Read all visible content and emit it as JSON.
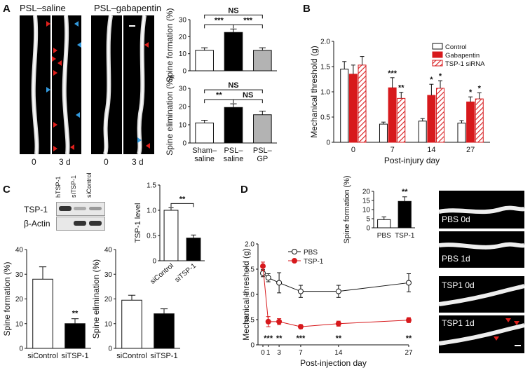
{
  "panels": {
    "A": "A",
    "B": "B",
    "C": "C",
    "D": "D"
  },
  "panel_a": {
    "micro_titles": [
      "PSL–saline",
      "PSL–gabapentin"
    ],
    "micro_times": [
      "0",
      "3 d",
      "0",
      "3 d"
    ]
  },
  "panel_c_blot": {
    "lanes": [
      "hTSP-1",
      "siTSP-1",
      "siControl"
    ],
    "rows": [
      "TSP-1",
      "β-Actin"
    ]
  },
  "panel_d_micro": [
    "PBS 0d",
    "PBS 1d",
    "TSP1 0d",
    "TSP1 1d"
  ],
  "colors": {
    "control": "#ffffff",
    "gabapentin": "#d7191c",
    "tsp1": "#d7191c",
    "black": "#000000",
    "gray": "#b3b3b3",
    "arrow_red": "#e0201c",
    "arrow_blue": "#3399dd"
  },
  "chart_data": [
    {
      "id": "A-formation",
      "type": "bar",
      "categories": [
        "Sham–saline",
        "PSL–saline",
        "PSL–GP"
      ],
      "values": [
        12,
        22.5,
        12
      ],
      "errors": [
        1.5,
        2,
        1.5
      ],
      "colors": [
        "#ffffff",
        "#000000",
        "#b3b3b3"
      ],
      "ylabel": "Spine formation (%)",
      "ylim": [
        0,
        30
      ],
      "yticks": [
        0,
        10,
        20,
        30
      ],
      "significance": [
        {
          "from": 0,
          "to": 1,
          "label": "***",
          "level": 1
        },
        {
          "from": 1,
          "to": 2,
          "label": "***",
          "level": 1
        },
        {
          "from": 0,
          "to": 2,
          "label": "NS",
          "level": 2
        }
      ]
    },
    {
      "id": "A-elimination",
      "type": "bar",
      "categories": [
        "Sham–saline",
        "PSL–saline",
        "PSL–GP"
      ],
      "category_lines": [
        [
          "Sham–",
          "saline"
        ],
        [
          "PSL–",
          "saline"
        ],
        [
          "PSL–",
          "GP"
        ]
      ],
      "values": [
        11,
        19.5,
        15.5
      ],
      "errors": [
        1.5,
        2,
        2
      ],
      "colors": [
        "#ffffff",
        "#000000",
        "#b3b3b3"
      ],
      "ylabel": "Spine elimination (%)",
      "ylim": [
        0,
        30
      ],
      "yticks": [
        0,
        10,
        20,
        30
      ],
      "significance": [
        {
          "from": 0,
          "to": 1,
          "label": "**",
          "level": 1
        },
        {
          "from": 1,
          "to": 2,
          "label": "NS",
          "level": 1
        },
        {
          "from": 0,
          "to": 2,
          "label": "NS",
          "level": 2
        }
      ]
    },
    {
      "id": "B",
      "type": "bar",
      "categories": [
        "0",
        "7",
        "14",
        "27"
      ],
      "series": [
        {
          "name": "Control",
          "values": [
            1.45,
            0.36,
            0.42,
            0.38
          ],
          "errors": [
            0.15,
            0.04,
            0.05,
            0.05
          ],
          "style": "white"
        },
        {
          "name": "Gabapentin",
          "values": [
            1.35,
            1.08,
            0.93,
            0.8
          ],
          "errors": [
            0.18,
            0.2,
            0.22,
            0.1
          ],
          "style": "red"
        },
        {
          "name": "TSP-1 siRNA",
          "values": [
            1.53,
            0.87,
            1.07,
            0.86
          ],
          "errors": [
            0.17,
            0.12,
            0.15,
            0.12
          ],
          "style": "hatch"
        }
      ],
      "annotations": [
        {
          "cat": 1,
          "series": 1,
          "label": "***"
        },
        {
          "cat": 1,
          "series": 2,
          "label": "**"
        },
        {
          "cat": 2,
          "series": 1,
          "label": "*"
        },
        {
          "cat": 2,
          "series": 2,
          "label": "*"
        },
        {
          "cat": 3,
          "series": 1,
          "label": "*"
        },
        {
          "cat": 3,
          "series": 2,
          "label": "*"
        }
      ],
      "xlabel": "Post-injury day",
      "ylabel": "Mechanical threshold (g)",
      "ylim": [
        0,
        2.0
      ],
      "yticks": [
        "0",
        "0.5",
        "1.0",
        "1.5",
        "2.0"
      ],
      "legend": "top-right"
    },
    {
      "id": "C-level",
      "type": "bar",
      "categories": [
        "siControl",
        "siTSP-1"
      ],
      "values": [
        1.0,
        0.45
      ],
      "errors": [
        0.05,
        0.06
      ],
      "colors": [
        "#ffffff",
        "#000000"
      ],
      "ylabel": "TSP-1 level",
      "ylim": [
        0,
        1.5
      ],
      "yticks": [
        "0",
        "0.5",
        "1.0",
        "1.5"
      ],
      "significance": [
        {
          "from": 0,
          "to": 1,
          "label": "**",
          "level": 1
        }
      ]
    },
    {
      "id": "C-formation",
      "type": "bar",
      "categories": [
        "siControl",
        "siTSP-1"
      ],
      "values": [
        28,
        10
      ],
      "errors": [
        5,
        2
      ],
      "colors": [
        "#ffffff",
        "#000000"
      ],
      "ylabel": "Spine formation (%)",
      "ylim": [
        0,
        40
      ],
      "yticks": [
        0,
        10,
        20,
        30,
        40
      ],
      "annotations": [
        {
          "index": 1,
          "label": "**"
        }
      ]
    },
    {
      "id": "C-elimination",
      "type": "bar",
      "categories": [
        "siControl",
        "siTSP-1"
      ],
      "values": [
        19.5,
        14
      ],
      "errors": [
        2,
        2
      ],
      "colors": [
        "#ffffff",
        "#000000"
      ],
      "ylabel": "Spine elimination (%)",
      "ylim": [
        0,
        40
      ],
      "yticks": [
        0,
        10,
        20,
        30,
        40
      ]
    },
    {
      "id": "D-formation",
      "type": "bar",
      "categories": [
        "PBS",
        "TSP-1"
      ],
      "values": [
        4.5,
        14.5
      ],
      "errors": [
        1.5,
        2.5
      ],
      "colors": [
        "#ffffff",
        "#000000"
      ],
      "ylabel": "Spine formation (%)",
      "ylim": [
        0,
        20
      ],
      "yticks": [
        0,
        5,
        10,
        15,
        20
      ],
      "annotations": [
        {
          "index": 1,
          "label": "**"
        }
      ]
    },
    {
      "id": "D-line",
      "type": "line",
      "x": [
        0,
        1,
        3,
        7,
        14,
        27
      ],
      "xticks": [
        0,
        1,
        3,
        7,
        14,
        27
      ],
      "series": [
        {
          "name": "PBS",
          "values": [
            1.42,
            1.33,
            1.23,
            1.06,
            1.06,
            1.23
          ],
          "errors": [
            0.07,
            0.08,
            0.2,
            0.12,
            0.12,
            0.18
          ],
          "marker": "open"
        },
        {
          "name": "TSP-1",
          "values": [
            1.56,
            0.46,
            0.46,
            0.36,
            0.42,
            0.49
          ],
          "errors": [
            0.08,
            0.1,
            0.06,
            0.04,
            0.05,
            0.05
          ],
          "marker": "filled"
        }
      ],
      "annotations": [
        {
          "x": 1,
          "label": "***"
        },
        {
          "x": 3,
          "label": "**"
        },
        {
          "x": 7,
          "label": "***"
        },
        {
          "x": 14,
          "label": "**"
        },
        {
          "x": 27,
          "label": "**"
        }
      ],
      "xlabel": "Post-injection day",
      "ylabel": "Mechanical threshold (g)",
      "ylim": [
        0,
        2.0
      ],
      "yticks": [
        "0",
        "0.5",
        "1.0",
        "1.5",
        "2.0"
      ],
      "legend": "top"
    }
  ]
}
